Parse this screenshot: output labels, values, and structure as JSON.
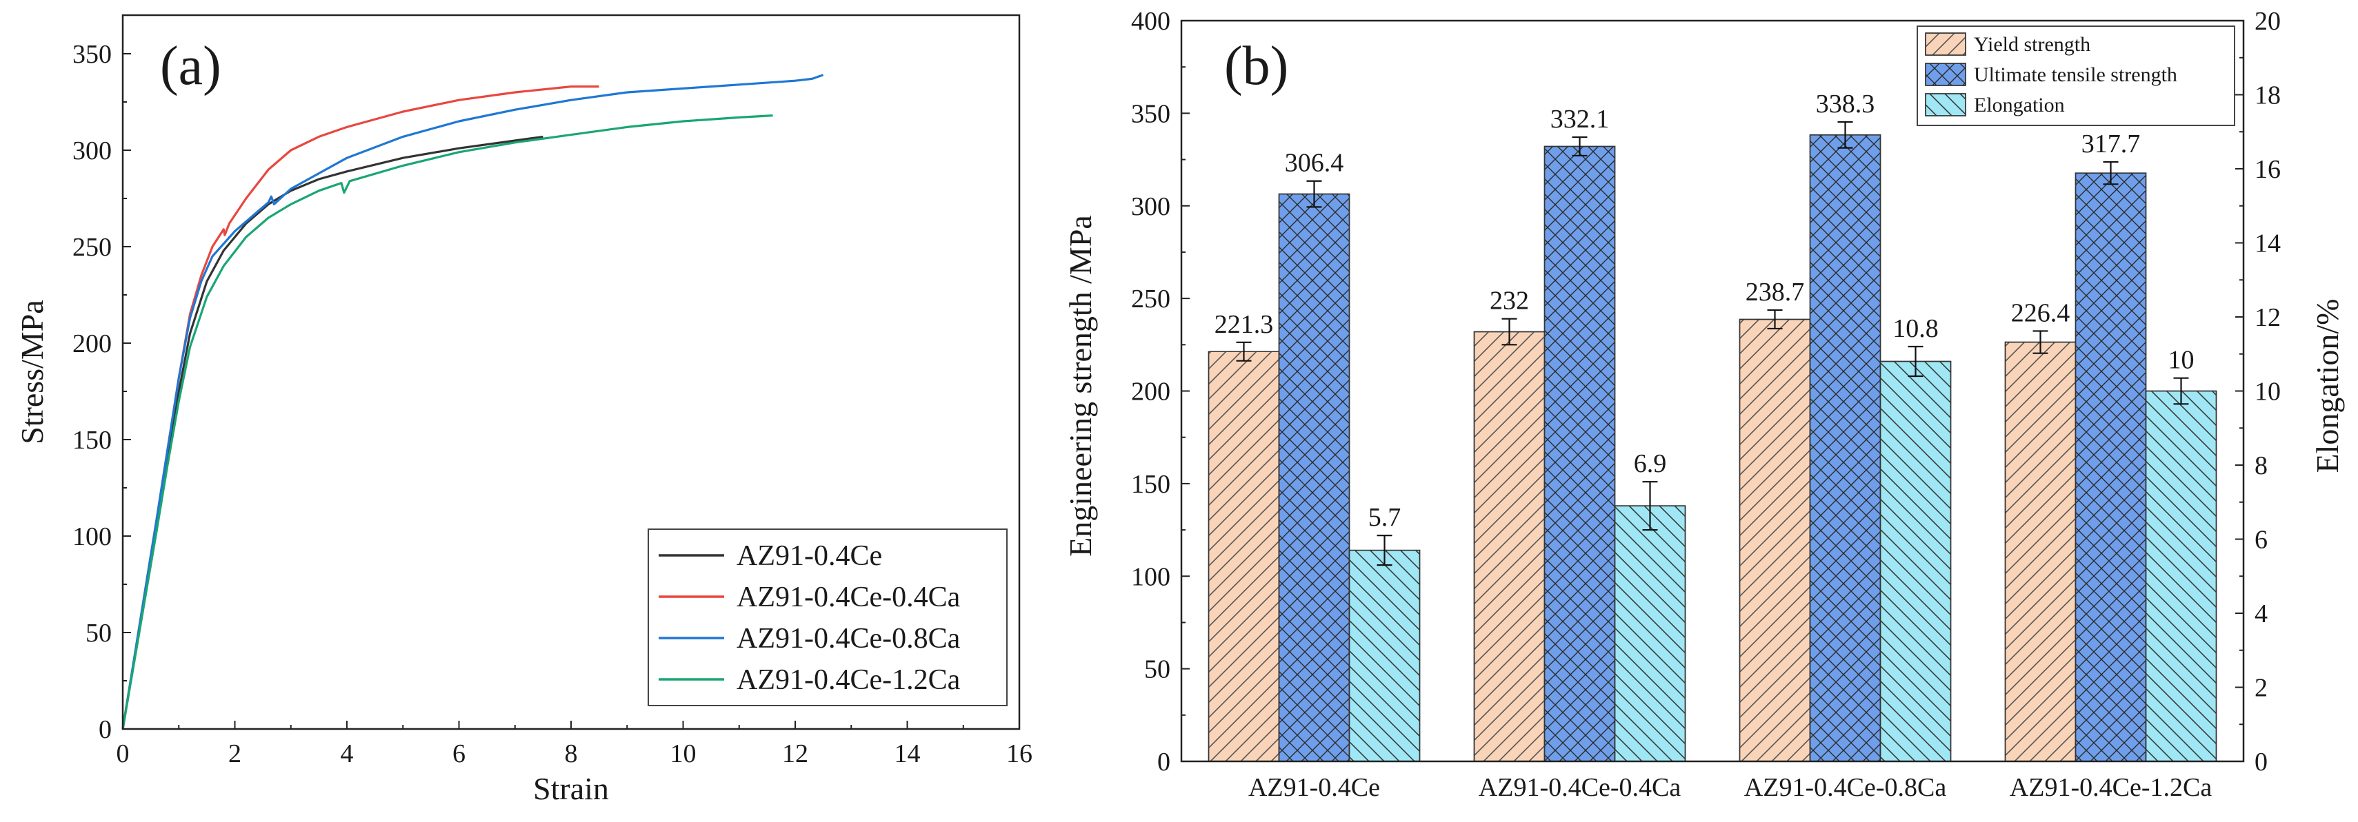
{
  "chart_data": [
    {
      "type": "line",
      "panel_label": "(a)",
      "xlabel": "Strain",
      "ylabel": "Stress/MPa",
      "xlim": [
        0,
        16
      ],
      "ylim": [
        0,
        370
      ],
      "xticks": [
        0,
        2,
        4,
        6,
        8,
        10,
        12,
        14,
        16
      ],
      "yticks": [
        0,
        50,
        100,
        150,
        200,
        250,
        300,
        350
      ],
      "legend_position": "bottom-right",
      "series": [
        {
          "name": "AZ91-0.4Ce",
          "color": "#333333",
          "points": [
            [
              0,
              0
            ],
            [
              0.2,
              35
            ],
            [
              0.4,
              70
            ],
            [
              0.6,
              105
            ],
            [
              0.8,
              140
            ],
            [
              1.0,
              175
            ],
            [
              1.2,
              205
            ],
            [
              1.5,
              232
            ],
            [
              1.8,
              248
            ],
            [
              2.2,
              262
            ],
            [
              2.6,
              272
            ],
            [
              3,
              279
            ],
            [
              3.5,
              285
            ],
            [
              4,
              289
            ],
            [
              5,
              296
            ],
            [
              6,
              301
            ],
            [
              7,
              305
            ],
            [
              7.5,
              307
            ]
          ]
        },
        {
          "name": "AZ91-0.4Ce-0.4Ca",
          "color": "#e8473f",
          "points": [
            [
              0,
              0
            ],
            [
              0.2,
              36
            ],
            [
              0.4,
              72
            ],
            [
              0.6,
              108
            ],
            [
              0.8,
              145
            ],
            [
              1.0,
              182
            ],
            [
              1.2,
              215
            ],
            [
              1.4,
              235
            ],
            [
              1.6,
              250
            ],
            [
              1.8,
              259
            ],
            [
              1.82,
              256
            ],
            [
              1.9,
              262
            ],
            [
              2.2,
              275
            ],
            [
              2.6,
              290
            ],
            [
              3,
              300
            ],
            [
              3.5,
              307
            ],
            [
              4,
              312
            ],
            [
              5,
              320
            ],
            [
              6,
              326
            ],
            [
              7,
              330
            ],
            [
              8,
              333
            ],
            [
              8.5,
              333
            ]
          ]
        },
        {
          "name": "AZ91-0.4Ce-0.8Ca",
          "color": "#1f77d4",
          "points": [
            [
              0,
              0
            ],
            [
              0.2,
              36
            ],
            [
              0.4,
              72
            ],
            [
              0.6,
              108
            ],
            [
              0.8,
              145
            ],
            [
              1.0,
              182
            ],
            [
              1.2,
              213
            ],
            [
              1.4,
              232
            ],
            [
              1.6,
              245
            ],
            [
              2.0,
              258
            ],
            [
              2.4,
              268
            ],
            [
              2.6,
              273
            ],
            [
              2.65,
              276
            ],
            [
              2.7,
              272
            ],
            [
              3,
              280
            ],
            [
              4,
              296
            ],
            [
              5,
              307
            ],
            [
              6,
              315
            ],
            [
              7,
              321
            ],
            [
              8,
              326
            ],
            [
              9,
              330
            ],
            [
              10,
              332
            ],
            [
              10.5,
              333
            ],
            [
              11,
              334
            ],
            [
              12,
              336
            ],
            [
              12.3,
              337
            ],
            [
              12.5,
              339
            ]
          ]
        },
        {
          "name": "AZ91-0.4Ce-1.2Ca",
          "color": "#1aa672",
          "points": [
            [
              0,
              0
            ],
            [
              0.2,
              34
            ],
            [
              0.4,
              68
            ],
            [
              0.6,
              102
            ],
            [
              0.8,
              137
            ],
            [
              1.0,
              170
            ],
            [
              1.2,
              198
            ],
            [
              1.5,
              224
            ],
            [
              1.8,
              240
            ],
            [
              2.2,
              255
            ],
            [
              2.6,
              265
            ],
            [
              3,
              272
            ],
            [
              3.5,
              279
            ],
            [
              3.9,
              283
            ],
            [
              3.95,
              278
            ],
            [
              4.05,
              284
            ],
            [
              5,
              292
            ],
            [
              6,
              299
            ],
            [
              7,
              304
            ],
            [
              8,
              308
            ],
            [
              9,
              312
            ],
            [
              10,
              315
            ],
            [
              11,
              317
            ],
            [
              11.6,
              318
            ]
          ]
        }
      ]
    },
    {
      "type": "bar",
      "panel_label": "(b)",
      "categories": [
        "AZ91-0.4Ce",
        "AZ91-0.4Ce-0.4Ca",
        "AZ91-0.4Ce-0.8Ca",
        "AZ91-0.4Ce-1.2Ca"
      ],
      "ylabel": "Engineering strength /MPa",
      "ylabel_right": "Elongation/%",
      "ylim": [
        0,
        400
      ],
      "ylim_right": [
        0,
        20
      ],
      "yticks": [
        0,
        50,
        100,
        150,
        200,
        250,
        300,
        350,
        400
      ],
      "yticks_right": [
        0,
        2,
        4,
        6,
        8,
        10,
        12,
        14,
        16,
        18,
        20
      ],
      "legend_position": "top-right",
      "series": [
        {
          "name": "Yield strength",
          "axis": "left",
          "fill": "#f9d4b8",
          "hatch": "diagonal",
          "values": [
            221.3,
            232,
            238.7,
            226.4
          ],
          "labels": [
            "221.3",
            "232",
            "238.7",
            "226.4"
          ],
          "errors": [
            5,
            7,
            5,
            6
          ]
        },
        {
          "name": "Ultimate tensile strength",
          "axis": "left",
          "fill": "#6f9fea",
          "hatch": "crosshatch",
          "values": [
            306.4,
            332.1,
            338.3,
            317.7
          ],
          "labels": [
            "306.4",
            "332.1",
            "338.3",
            "317.7"
          ],
          "errors": [
            7,
            5,
            7,
            6
          ]
        },
        {
          "name": "Elongation",
          "axis": "right",
          "fill": "#9fe7f5",
          "hatch": "backdiagonal",
          "values": [
            5.7,
            6.9,
            10.8,
            10
          ],
          "labels": [
            "5.7",
            "6.9",
            "10.8",
            "10"
          ],
          "errors": [
            0.4,
            0.65,
            0.4,
            0.35
          ]
        }
      ]
    }
  ]
}
